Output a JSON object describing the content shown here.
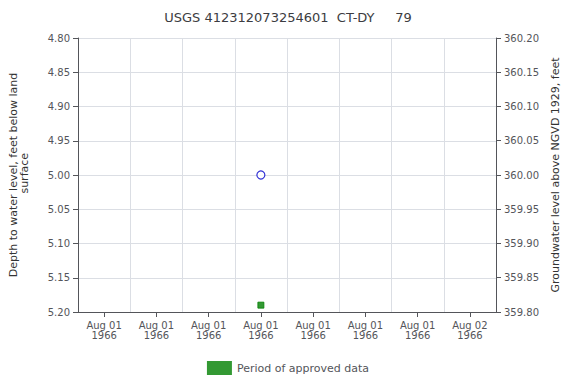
{
  "chart_data": {
    "type": "scatter",
    "title": "USGS 412312073254601  CT-DY     79",
    "ylabel": "Depth to water level, feet below land\n surface",
    "y2label": "Groundwater level above NGVD 1929, feet",
    "categories": [
      "Aug 01\n1966",
      "Aug 01\n1966",
      "Aug 01\n1966",
      "Aug 01\n1966",
      "Aug 01\n1966",
      "Aug 01\n1966",
      "Aug 01\n1966",
      "Aug 02\n1966"
    ],
    "series": [
      {
        "color": "#0000cc",
        "marker": "open_circle",
        "values": [
          null,
          null,
          null,
          5.0,
          null,
          null,
          null,
          null
        ]
      },
      {
        "name": "Period of approved data",
        "color": "#008000",
        "marker": "square",
        "values": [
          null,
          null,
          null,
          5.19,
          null,
          null,
          null,
          null
        ]
      }
    ],
    "ylim": [
      5.2,
      4.8
    ],
    "yticks": [
      {
        "value": 4.8,
        "label": "4.80"
      },
      {
        "value": 4.85,
        "label": "4.85"
      },
      {
        "value": 4.9,
        "label": "4.90"
      },
      {
        "value": 4.95,
        "label": "4.95"
      },
      {
        "value": 5.0,
        "label": "5.00"
      },
      {
        "value": 5.05,
        "label": "5.05"
      },
      {
        "value": 5.1,
        "label": "5.10"
      },
      {
        "value": 5.15,
        "label": "5.15"
      },
      {
        "value": 5.2,
        "label": "5.20"
      }
    ],
    "y2lim": [
      359.8,
      360.2
    ],
    "y2ticks": [
      {
        "value": 359.8,
        "label": "359.80"
      },
      {
        "value": 359.85,
        "label": "359.85"
      },
      {
        "value": 359.9,
        "label": "359.90"
      },
      {
        "value": 359.95,
        "label": "359.95"
      },
      {
        "value": 360.0,
        "label": "360.00"
      },
      {
        "value": 360.05,
        "label": "360.05"
      },
      {
        "value": 360.1,
        "label": "360.10"
      },
      {
        "value": 360.15,
        "label": "360.15"
      },
      {
        "value": 360.2,
        "label": "360.20"
      }
    ],
    "grid": true,
    "legend": "bottom"
  }
}
